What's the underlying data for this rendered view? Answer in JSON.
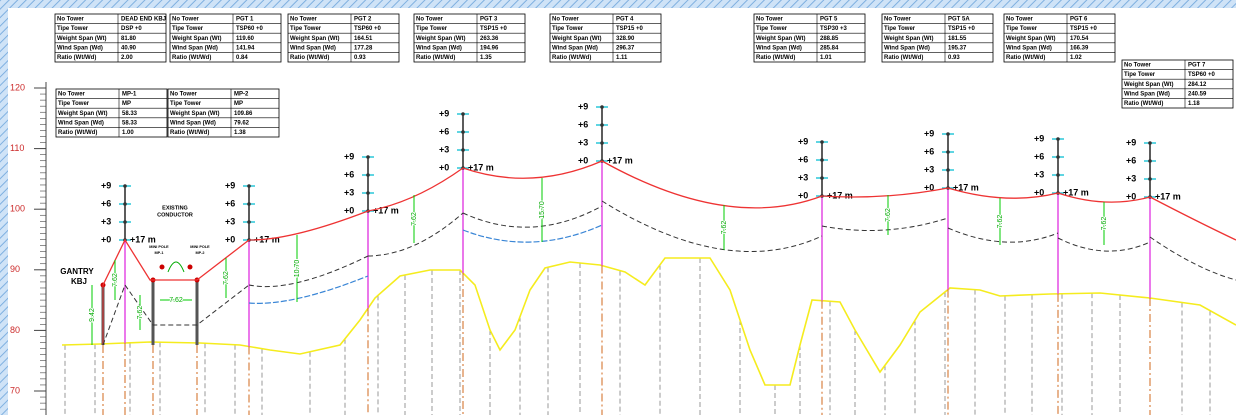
{
  "tower_tables": [
    {
      "rows": [
        [
          "No Tower",
          "DEAD END KBJ"
        ],
        [
          "Tipe Tower",
          "DSP +0"
        ],
        [
          "Weight Span (Wt)",
          "81.80"
        ],
        [
          "Wind Span (Wd)",
          "40.90"
        ],
        [
          "Ratio (Wt/Wd)",
          "2.00"
        ]
      ]
    },
    {
      "rows": [
        [
          "No Tower",
          "PGT 1"
        ],
        [
          "Tipe Tower",
          "TSP60 +0"
        ],
        [
          "Weight Span (Wt)",
          "119.60"
        ],
        [
          "Wind Span (Wd)",
          "141.94"
        ],
        [
          "Ratio (Wt/Wd)",
          "0.84"
        ]
      ]
    },
    {
      "rows": [
        [
          "No Tower",
          "PGT 2"
        ],
        [
          "Tipe Tower",
          "TSP60 +0"
        ],
        [
          "Weight Span (Wt)",
          "164.51"
        ],
        [
          "Wind Span (Wd)",
          "177.28"
        ],
        [
          "Ratio (Wt/Wd)",
          "0.93"
        ]
      ]
    },
    {
      "rows": [
        [
          "No Tower",
          "PGT 3"
        ],
        [
          "Tipe Tower",
          "TSP15 +0"
        ],
        [
          "Weight Span (Wt)",
          "263.36"
        ],
        [
          "Wind Span (Wd)",
          "194.96"
        ],
        [
          "Ratio (Wt/Wd)",
          "1.35"
        ]
      ]
    },
    {
      "rows": [
        [
          "No Tower",
          "PGT 4"
        ],
        [
          "Tipe Tower",
          "TSP15 +0"
        ],
        [
          "Weight Span (Wt)",
          "328.90"
        ],
        [
          "Wind Span (Wd)",
          "296.37"
        ],
        [
          "Ratio (Wt/Wd)",
          "1.11"
        ]
      ]
    },
    {
      "rows": [
        [
          "No Tower",
          "PGT 5"
        ],
        [
          "Tipe Tower",
          "TSP30 +3"
        ],
        [
          "Weight Span (Wt)",
          "288.85"
        ],
        [
          "Wind Span (Wd)",
          "285.84"
        ],
        [
          "Ratio (Wt/Wd)",
          "1.01"
        ]
      ]
    },
    {
      "rows": [
        [
          "No Tower",
          "PGT 5A"
        ],
        [
          "Tipe Tower",
          "TSP15 +0"
        ],
        [
          "Weight Span (Wt)",
          "181.55"
        ],
        [
          "Wind Span (Wd)",
          "195.37"
        ],
        [
          "Ratio (Wt/Wd)",
          "0.93"
        ]
      ]
    },
    {
      "rows": [
        [
          "No Tower",
          "PGT 6"
        ],
        [
          "Tipe Tower",
          "TSP15 +0"
        ],
        [
          "Weight Span (Wt)",
          "170.54"
        ],
        [
          "Wind Span (Wd)",
          "166.39"
        ],
        [
          "Ratio (Wt/Wd)",
          "1.02"
        ]
      ]
    },
    {
      "rows": [
        [
          "No Tower",
          "PGT 7"
        ],
        [
          "Tipe Tower",
          "TSP60 +0"
        ],
        [
          "Weight Span (Wt)",
          "284.12"
        ],
        [
          "Wind Span (Wd)",
          "240.59"
        ],
        [
          "Ratio (Wt/Wd)",
          "1.18"
        ]
      ]
    }
  ],
  "mini_pole_tables": [
    {
      "rows": [
        [
          "No Tower",
          "MP-1"
        ],
        [
          "Tipe Tower",
          "MP"
        ],
        [
          "Weight Span (Wt)",
          "58.33"
        ],
        [
          "Wind Span (Wd)",
          "58.33"
        ],
        [
          "Ratio (Wt/Wd)",
          "1.00"
        ]
      ]
    },
    {
      "rows": [
        [
          "No Tower",
          "MP-2"
        ],
        [
          "Tipe Tower",
          "MP"
        ],
        [
          "Weight Span (Wt)",
          "109.86"
        ],
        [
          "Wind Span (Wd)",
          "79.62"
        ],
        [
          "Ratio (Wt/Wd)",
          "1.38"
        ]
      ]
    }
  ],
  "elevation_ticks": [
    120,
    110,
    100,
    90,
    80,
    70
  ],
  "height_marks": [
    "+9",
    "+6",
    "+3",
    "+0"
  ],
  "tower_height": "+17 m",
  "clearances": [
    "9.42",
    "7.62",
    "7.62",
    "7.62",
    "7.62",
    "10.70",
    "7.62",
    "15.70",
    "7.62",
    "7.62",
    "7.62",
    "7.62"
  ],
  "labels": {
    "gantry": "GANTRY",
    "kbj": "KBJ",
    "existing": "EXISTING",
    "conductor": "CONDUCTOR",
    "mini_pole": "MINI POLE",
    "mp1": "MP-1",
    "mp2": "MP-2"
  }
}
